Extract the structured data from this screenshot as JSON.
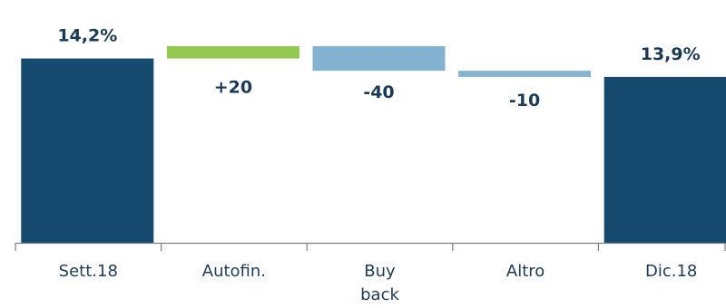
{
  "chart_data": {
    "type": "bar",
    "subtype": "waterfall",
    "categories": [
      {
        "lines": [
          "Sett.18"
        ]
      },
      {
        "lines": [
          "Autofin."
        ]
      },
      {
        "lines": [
          "Buy",
          "back"
        ]
      },
      {
        "lines": [
          "Altro"
        ]
      },
      {
        "lines": [
          "Dic.18"
        ]
      }
    ],
    "bars": [
      {
        "kind": "total",
        "value": 14.2,
        "label": "14,2%",
        "color": "#164a6e"
      },
      {
        "kind": "delta",
        "delta_bps": 20,
        "start": 14.2,
        "end": 14.4,
        "label": "+20",
        "color": "#92c94e"
      },
      {
        "kind": "delta",
        "delta_bps": -40,
        "start": 14.4,
        "end": 14.0,
        "label": "-40",
        "color": "#84b3d1"
      },
      {
        "kind": "delta",
        "delta_bps": -10,
        "start": 14.0,
        "end": 13.9,
        "label": "-10",
        "color": "#84b3d1"
      },
      {
        "kind": "total",
        "value": 13.9,
        "label": "13,9%",
        "color": "#164a6e"
      }
    ],
    "ylim": [
      11.2,
      14.4
    ],
    "grid": false,
    "legend": "none"
  }
}
